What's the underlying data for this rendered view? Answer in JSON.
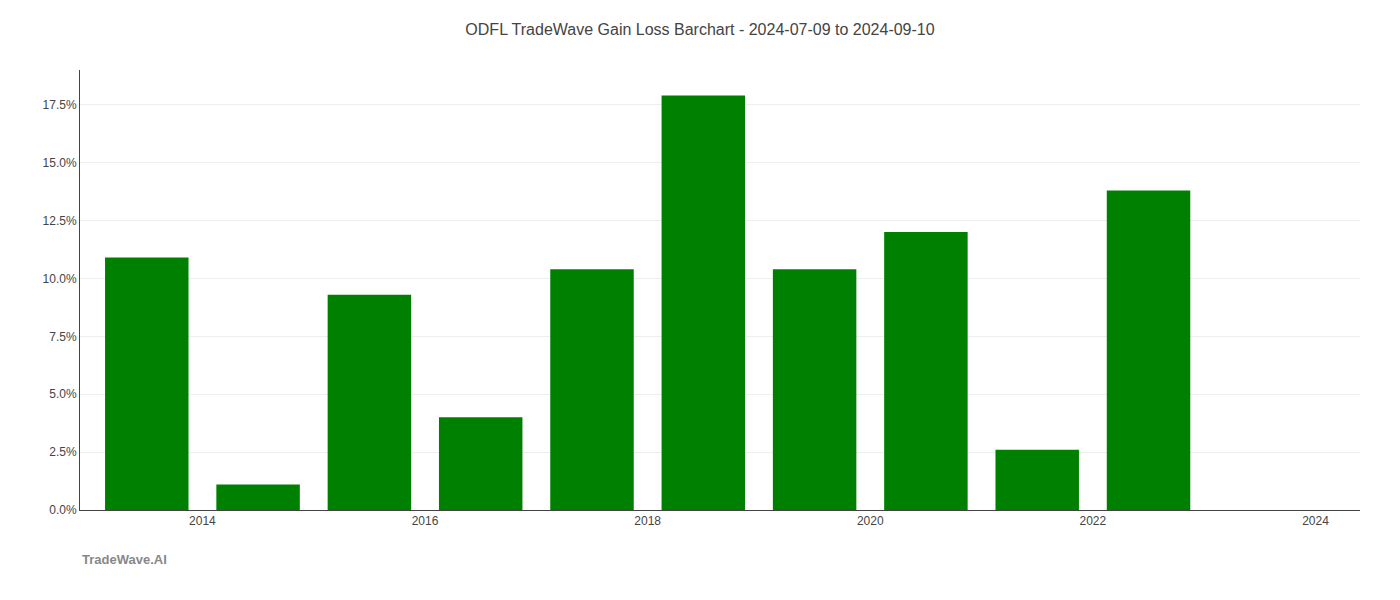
{
  "chart_data": {
    "type": "bar",
    "title": "ODFL TradeWave Gain Loss Barchart - 2024-07-09 to 2024-09-10",
    "annotations": [
      {
        "text": "TradeWave.AI"
      }
    ],
    "x": [
      2014,
      2015,
      2016,
      2017,
      2018,
      2019,
      2020,
      2021,
      2022,
      2023,
      2024
    ],
    "values": [
      0.109,
      0.011,
      0.093,
      0.04,
      0.104,
      0.179,
      0.104,
      0.12,
      0.026,
      0.138,
      null
    ],
    "color": "#008000",
    "xlim": [
      2013.4,
      2024.9
    ],
    "xticks": [
      {
        "value": 2014.5,
        "label": "2014"
      },
      {
        "value": 2016.5,
        "label": "2016"
      },
      {
        "value": 2018.5,
        "label": "2018"
      },
      {
        "value": 2020.5,
        "label": "2020"
      },
      {
        "value": 2022.5,
        "label": "2022"
      },
      {
        "value": 2024.5,
        "label": "2024"
      }
    ],
    "ylim": [
      0.0,
      0.19
    ],
    "yticks": [
      {
        "value": 0.0,
        "label": "0.0%"
      },
      {
        "value": 0.025,
        "label": "2.5%"
      },
      {
        "value": 0.05,
        "label": "5.0%"
      },
      {
        "value": 0.075,
        "label": "7.5%"
      },
      {
        "value": 0.1,
        "label": "10.0%"
      },
      {
        "value": 0.125,
        "label": "12.5%"
      },
      {
        "value": 0.15,
        "label": "15.0%"
      },
      {
        "value": 0.175,
        "label": "17.5%"
      }
    ],
    "grid": true
  }
}
